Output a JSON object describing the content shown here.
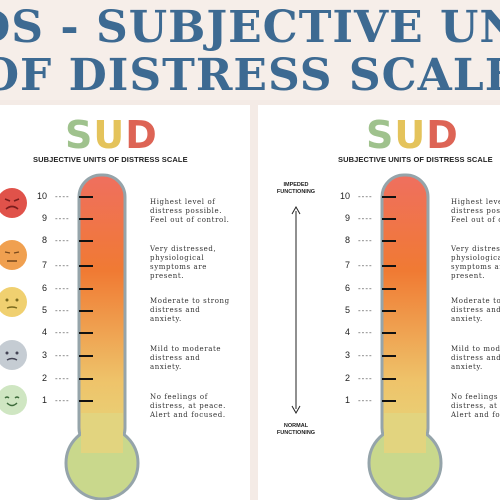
{
  "banner": {
    "line1": "SUDS - SUBJECTIVE UNITS",
    "line2": "OF DISTRESS SCALE"
  },
  "sheet": {
    "logo": {
      "s": "S",
      "u": "U",
      "d": "D"
    },
    "subtitle": "SUBJECTIVE UNITS OF DISTRESS SCALE",
    "levels": [
      "10",
      "9",
      "8",
      "7",
      "6",
      "5",
      "4",
      "3",
      "2",
      "1"
    ],
    "dash": "----",
    "descriptions": [
      "Highest level of\ndistress possible.\nFeel out of control.",
      "Very distressed,\nphysiological\nsymptoms are\npresent.",
      "Moderate to strong\ndistress and\nanxiety.",
      "Mild to moderate\ndistress and\nanxiety.",
      "No feelings of\ndistress, at peace.\nAlert and focused."
    ],
    "faces": [
      "angry-face-icon",
      "worried-face-icon",
      "neutral-face-icon",
      "sad-face-icon",
      "happy-face-icon"
    ],
    "face_colors": [
      "#e0524a",
      "#f0a050",
      "#f0d070",
      "#c5ccd3",
      "#cfe6c2"
    ],
    "impeded": "IMPEDED\nFUNCTIONING",
    "normal": "NORMAL\nFUNCTIONING"
  },
  "colors": {
    "banner_text": "#3d6a92",
    "mercury_top": "#ef6f5f",
    "mercury_mid": "#f07a33",
    "mercury_bottom": "#e8d67a",
    "bulb": "#c9d88c",
    "tube_border": "#95a4aa"
  }
}
